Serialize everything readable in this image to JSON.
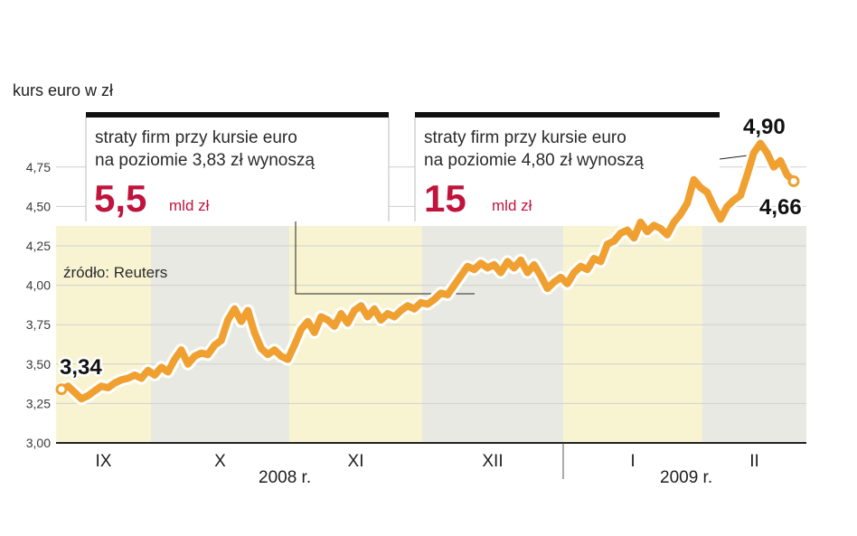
{
  "chart_data": {
    "type": "line",
    "ylabel": "kurs euro w zł",
    "ylim": [
      3.0,
      4.95
    ],
    "yticks": [
      "3,00",
      "3,25",
      "3,50",
      "3,75",
      "4,00",
      "4,25",
      "4,50",
      "4,75"
    ],
    "ytick_values": [
      3.0,
      3.25,
      3.5,
      3.75,
      4.0,
      4.25,
      4.5,
      4.75
    ],
    "months": [
      "IX",
      "X",
      "XI",
      "XII",
      "I",
      "II"
    ],
    "years": [
      "2008 r.",
      "2009 r."
    ],
    "source": "źródło: Reuters",
    "series": [
      {
        "color": "#f0a030",
        "values": [
          3.34,
          3.36,
          3.32,
          3.28,
          3.3,
          3.33,
          3.36,
          3.35,
          3.38,
          3.4,
          3.41,
          3.43,
          3.41,
          3.46,
          3.43,
          3.48,
          3.45,
          3.53,
          3.59,
          3.5,
          3.55,
          3.57,
          3.56,
          3.62,
          3.65,
          3.78,
          3.85,
          3.77,
          3.84,
          3.7,
          3.6,
          3.56,
          3.59,
          3.55,
          3.53,
          3.62,
          3.72,
          3.77,
          3.7,
          3.8,
          3.78,
          3.74,
          3.82,
          3.76,
          3.84,
          3.87,
          3.8,
          3.85,
          3.78,
          3.82,
          3.8,
          3.84,
          3.87,
          3.85,
          3.89,
          3.88,
          3.91,
          3.95,
          3.94,
          4.0,
          4.06,
          4.12,
          4.1,
          4.14,
          4.11,
          4.13,
          4.08,
          4.15,
          4.11,
          4.16,
          4.08,
          4.13,
          4.06,
          3.98,
          4.02,
          4.05,
          4.01,
          4.08,
          4.12,
          4.1,
          4.17,
          4.15,
          4.26,
          4.28,
          4.33,
          4.35,
          4.3,
          4.4,
          4.34,
          4.38,
          4.36,
          4.32,
          4.4,
          4.45,
          4.52,
          4.67,
          4.62,
          4.59,
          4.5,
          4.42,
          4.5,
          4.54,
          4.57,
          4.7,
          4.84,
          4.9,
          4.84,
          4.75,
          4.79,
          4.7,
          4.66
        ]
      }
    ],
    "end_labels": {
      "start": "3,34",
      "max": "4,90",
      "end": "4,66"
    },
    "annotations": [
      {
        "line1": "straty firm przy kursie euro",
        "line2": "na poziomie 3,83 zł wynoszą",
        "value": "5,5",
        "unit": "mld zł"
      },
      {
        "line1": "straty firm przy kursie euro",
        "line2": "na poziomie 4,80 zł wynoszą",
        "value": "15",
        "unit": "mld zł"
      }
    ],
    "colors": {
      "line": "#f0a030",
      "accent": "#c0143c",
      "band_yellow": "#f8f4d2",
      "band_gray": "#e9e9e3"
    }
  }
}
